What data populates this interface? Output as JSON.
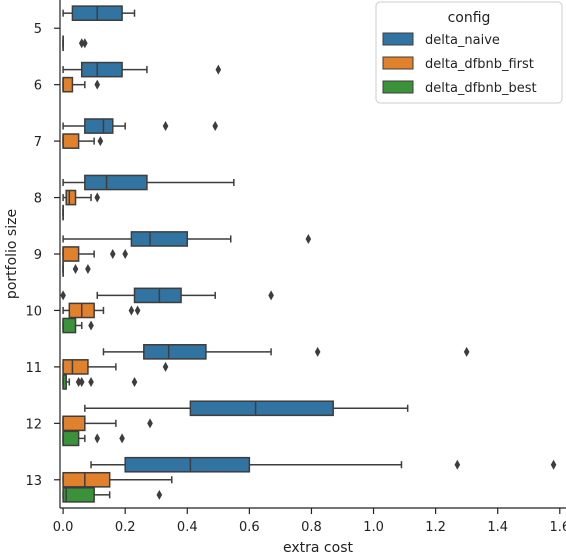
{
  "chart_data": {
    "type": "boxplot",
    "orientation": "horizontal",
    "xlabel": "extra cost",
    "ylabel": "portfolio size",
    "xlim": [
      -0.01,
      1.62
    ],
    "xticks": [
      "0.0",
      "0.2",
      "0.4",
      "0.6",
      "0.8",
      "1.0",
      "1.2",
      "1.4",
      "1.6"
    ],
    "xtick_values": [
      0,
      0.2,
      0.4,
      0.6,
      0.8,
      1.0,
      1.2,
      1.4,
      1.6
    ],
    "categories": [
      "5",
      "6",
      "7",
      "8",
      "9",
      "10",
      "11",
      "12",
      "13"
    ],
    "legend": {
      "title": "config",
      "position": "top-right",
      "entries": [
        "delta_naive",
        "delta_dfbnb_first",
        "delta_dfbnb_best"
      ]
    },
    "colors": {
      "delta_naive": "#3274a1",
      "delta_dfbnb_first": "#e1812c",
      "delta_dfbnb_best": "#3a923a"
    },
    "series": [
      {
        "name": "delta_naive",
        "boxes": [
          {
            "cat": "5",
            "whislo": 0.0,
            "q1": 0.03,
            "med": 0.11,
            "q3": 0.19,
            "whishi": 0.23,
            "fliers": []
          },
          {
            "cat": "6",
            "whislo": 0.0,
            "q1": 0.06,
            "med": 0.11,
            "q3": 0.19,
            "whishi": 0.27,
            "fliers": [
              0.5
            ]
          },
          {
            "cat": "7",
            "whislo": 0.0,
            "q1": 0.07,
            "med": 0.13,
            "q3": 0.16,
            "whishi": 0.2,
            "fliers": [
              0.33,
              0.49
            ]
          },
          {
            "cat": "8",
            "whislo": 0.0,
            "q1": 0.07,
            "med": 0.14,
            "q3": 0.27,
            "whishi": 0.55,
            "fliers": []
          },
          {
            "cat": "9",
            "whislo": 0.0,
            "q1": 0.22,
            "med": 0.28,
            "q3": 0.4,
            "whishi": 0.54,
            "fliers": [
              0.79
            ]
          },
          {
            "cat": "10",
            "whislo": 0.11,
            "q1": 0.23,
            "med": 0.31,
            "q3": 0.38,
            "whishi": 0.49,
            "fliers": [
              0.0,
              0.67
            ]
          },
          {
            "cat": "11",
            "whislo": 0.13,
            "q1": 0.26,
            "med": 0.34,
            "q3": 0.46,
            "whishi": 0.67,
            "fliers": [
              0.82,
              1.3
            ]
          },
          {
            "cat": "12",
            "whislo": 0.07,
            "q1": 0.41,
            "med": 0.62,
            "q3": 0.87,
            "whishi": 1.11,
            "fliers": []
          },
          {
            "cat": "13",
            "whislo": 0.09,
            "q1": 0.2,
            "med": 0.41,
            "q3": 0.6,
            "whishi": 1.09,
            "fliers": [
              1.27,
              1.58
            ]
          }
        ]
      },
      {
        "name": "delta_dfbnb_first",
        "boxes": [
          {
            "cat": "6",
            "whislo": 0.0,
            "q1": 0.0,
            "med": 0.0,
            "q3": 0.03,
            "whishi": 0.07,
            "fliers": [
              0.11
            ]
          },
          {
            "cat": "7",
            "whislo": 0.0,
            "q1": 0.0,
            "med": 0.0,
            "q3": 0.05,
            "whishi": 0.1,
            "fliers": [
              0.12
            ]
          },
          {
            "cat": "8",
            "whislo": 0.0,
            "q1": 0.01,
            "med": 0.02,
            "q3": 0.04,
            "whishi": 0.09,
            "fliers": [
              0.11
            ]
          },
          {
            "cat": "9",
            "whislo": 0.0,
            "q1": 0.0,
            "med": 0.0,
            "q3": 0.05,
            "whishi": 0.1,
            "fliers": [
              0.16,
              0.2
            ]
          },
          {
            "cat": "10",
            "whislo": 0.0,
            "q1": 0.02,
            "med": 0.06,
            "q3": 0.1,
            "whishi": 0.13,
            "fliers": [
              0.22,
              0.24
            ]
          },
          {
            "cat": "11",
            "whislo": 0.0,
            "q1": 0.0,
            "med": 0.03,
            "q3": 0.08,
            "whishi": 0.17,
            "fliers": [
              0.33
            ]
          },
          {
            "cat": "12",
            "whislo": 0.0,
            "q1": 0.0,
            "med": 0.0,
            "q3": 0.07,
            "whishi": 0.17,
            "fliers": [
              0.28
            ]
          },
          {
            "cat": "13",
            "whislo": 0.0,
            "q1": 0.0,
            "med": 0.07,
            "q3": 0.15,
            "whishi": 0.35,
            "fliers": []
          }
        ]
      },
      {
        "name": "delta_dfbnb_best",
        "boxes": [
          {
            "cat": "5",
            "whislo": 0.0,
            "q1": 0.0,
            "med": 0.0,
            "q3": 0.0,
            "whishi": 0.0,
            "fliers": [
              0.06,
              0.07
            ]
          },
          {
            "cat": "8",
            "whislo": 0.0,
            "q1": 0.0,
            "med": 0.0,
            "q3": 0.0,
            "whishi": 0.0,
            "fliers": []
          },
          {
            "cat": "9",
            "whislo": 0.0,
            "q1": 0.0,
            "med": 0.0,
            "q3": 0.0,
            "whishi": 0.0,
            "fliers": [
              0.04,
              0.08
            ]
          },
          {
            "cat": "10",
            "whislo": 0.0,
            "q1": 0.0,
            "med": 0.0,
            "q3": 0.04,
            "whishi": 0.06,
            "fliers": [
              0.09
            ]
          },
          {
            "cat": "11",
            "whislo": 0.0,
            "q1": 0.0,
            "med": 0.0,
            "q3": 0.01,
            "whishi": 0.02,
            "fliers": [
              0.05,
              0.06,
              0.09,
              0.23
            ]
          },
          {
            "cat": "12",
            "whislo": 0.0,
            "q1": 0.0,
            "med": 0.0,
            "q3": 0.05,
            "whishi": 0.07,
            "fliers": [
              0.11,
              0.19
            ]
          },
          {
            "cat": "13",
            "whislo": 0.0,
            "q1": 0.0,
            "med": 0.01,
            "q3": 0.1,
            "whishi": 0.15,
            "fliers": [
              0.31
            ]
          }
        ]
      }
    ]
  }
}
